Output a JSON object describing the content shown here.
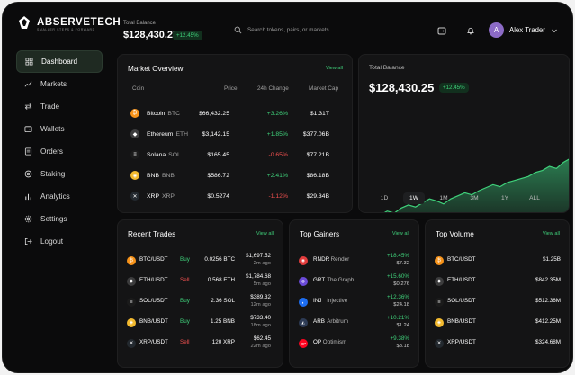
{
  "brand": {
    "name": "ABSERVETECH",
    "tagline": "SMALLER STEPS & FORWARD"
  },
  "sidebar": {
    "items": [
      {
        "label": "Dashboard",
        "icon": "dashboard-icon",
        "active": true
      },
      {
        "label": "Markets",
        "icon": "markets-icon"
      },
      {
        "label": "Trade",
        "icon": "trade-icon"
      },
      {
        "label": "Wallets",
        "icon": "wallet-icon"
      },
      {
        "label": "Orders",
        "icon": "orders-icon"
      },
      {
        "label": "Staking",
        "icon": "staking-icon"
      },
      {
        "label": "Analytics",
        "icon": "analytics-icon"
      },
      {
        "label": "Settings",
        "icon": "settings-icon"
      },
      {
        "label": "Logout",
        "icon": "logout-icon"
      }
    ]
  },
  "header": {
    "balance_label": "Total Balance",
    "balance": "$128,430.25",
    "change": "+12.45%",
    "search_placeholder": "Search tokens, pairs, or markets",
    "user_initial": "A",
    "user_name": "Alex Trader"
  },
  "market": {
    "title": "Market Overview",
    "view_all": "View all",
    "headers": [
      "Coin",
      "Price",
      "24h Change",
      "Market Cap"
    ],
    "rows": [
      {
        "name": "Bitcoin",
        "sym": "BTC",
        "price": "$66,432.25",
        "change": "+3.26%",
        "dir": "pos",
        "cap": "$1.31T",
        "color": "#f7931a",
        "glyph": "₿"
      },
      {
        "name": "Ethereum",
        "sym": "ETH",
        "price": "$3,142.15",
        "change": "+1.85%",
        "dir": "pos",
        "cap": "$377.06B",
        "color": "#3c3c3d",
        "glyph": "◆"
      },
      {
        "name": "Solana",
        "sym": "SOL",
        "price": "$165.45",
        "change": "-0.65%",
        "dir": "neg",
        "cap": "$77.21B",
        "color": "#1b1b1b",
        "glyph": "≡"
      },
      {
        "name": "BNB",
        "sym": "BNB",
        "price": "$586.72",
        "change": "+2.41%",
        "dir": "pos",
        "cap": "$86.18B",
        "color": "#f3ba2f",
        "glyph": "◈"
      },
      {
        "name": "XRP",
        "sym": "XRP",
        "price": "$0.5274",
        "change": "-1.12%",
        "dir": "neg",
        "cap": "$29.34B",
        "color": "#23292f",
        "glyph": "✕"
      }
    ]
  },
  "balance_card": {
    "title": "Total Balance",
    "amount": "$128,430.25",
    "change": "+12.45%",
    "timeframes": [
      "1D",
      "1W",
      "1M",
      "3M",
      "1Y",
      "ALL"
    ],
    "active_timeframe": "1W"
  },
  "chart_data": {
    "type": "area",
    "values": [
      30,
      34,
      32,
      36,
      40,
      38,
      43,
      46,
      44,
      48,
      52,
      50,
      47,
      52,
      55,
      58,
      56,
      60,
      63,
      66,
      64,
      68,
      70,
      72,
      74,
      78,
      80,
      84,
      82,
      88,
      92
    ],
    "color": "#2f8f5b"
  },
  "trades": {
    "title": "Recent Trades",
    "view_all": "View all",
    "rows": [
      {
        "pair": "BTC/USDT",
        "side": "Buy",
        "dir": "pos",
        "amount": "0.0256 BTC",
        "value": "$1,697.52",
        "time": "2m ago",
        "color": "#f7931a",
        "glyph": "₿"
      },
      {
        "pair": "ETH/USDT",
        "side": "Sell",
        "dir": "neg",
        "amount": "0.568 ETH",
        "value": "$1,784.68",
        "time": "5m ago",
        "color": "#3c3c3d",
        "glyph": "◆"
      },
      {
        "pair": "SOL/USDT",
        "side": "Buy",
        "dir": "pos",
        "amount": "2.36 SOL",
        "value": "$389.32",
        "time": "12m ago",
        "color": "#1b1b1b",
        "glyph": "≡"
      },
      {
        "pair": "BNB/USDT",
        "side": "Buy",
        "dir": "pos",
        "amount": "1.25 BNB",
        "value": "$733.40",
        "time": "18m ago",
        "color": "#f3ba2f",
        "glyph": "◈"
      },
      {
        "pair": "XRP/USDT",
        "side": "Sell",
        "dir": "neg",
        "amount": "120 XRP",
        "value": "$62.45",
        "time": "22m ago",
        "color": "#23292f",
        "glyph": "✕"
      }
    ]
  },
  "gainers": {
    "title": "Top Gainers",
    "view_all": "View all",
    "rows": [
      {
        "sym": "RNDR",
        "name": "Render",
        "change": "+18.45%",
        "price": "$7.32",
        "color": "#e23c3c",
        "glyph": "◉"
      },
      {
        "sym": "GRT",
        "name": "The Graph",
        "change": "+15.60%",
        "price": "$0.276",
        "color": "#6a4ad8",
        "glyph": "◍"
      },
      {
        "sym": "INJ",
        "name": "Injective",
        "change": "+12.36%",
        "price": "$24.18",
        "color": "#1d6ef2",
        "glyph": "◐"
      },
      {
        "sym": "ARB",
        "name": "Arbitrum",
        "change": "+10.21%",
        "price": "$1.24",
        "color": "#2d3b55",
        "glyph": "◭"
      },
      {
        "sym": "OP",
        "name": "Optimism",
        "change": "+9.38%",
        "price": "$3.18",
        "color": "#ff0420",
        "glyph": "OP"
      }
    ]
  },
  "volume": {
    "title": "Top Volume",
    "view_all": "View all",
    "rows": [
      {
        "pair": "BTC/USDT",
        "value": "$1.25B",
        "color": "#f7931a",
        "glyph": "₿"
      },
      {
        "pair": "ETH/USDT",
        "value": "$842.35M",
        "color": "#3c3c3d",
        "glyph": "◆"
      },
      {
        "pair": "SOL/USDT",
        "value": "$512.36M",
        "color": "#1b1b1b",
        "glyph": "≡"
      },
      {
        "pair": "BNB/USDT",
        "value": "$412.25M",
        "color": "#f3ba2f",
        "glyph": "◈"
      },
      {
        "pair": "XRP/USDT",
        "value": "$324.68M",
        "color": "#23292f",
        "glyph": "✕"
      }
    ]
  }
}
